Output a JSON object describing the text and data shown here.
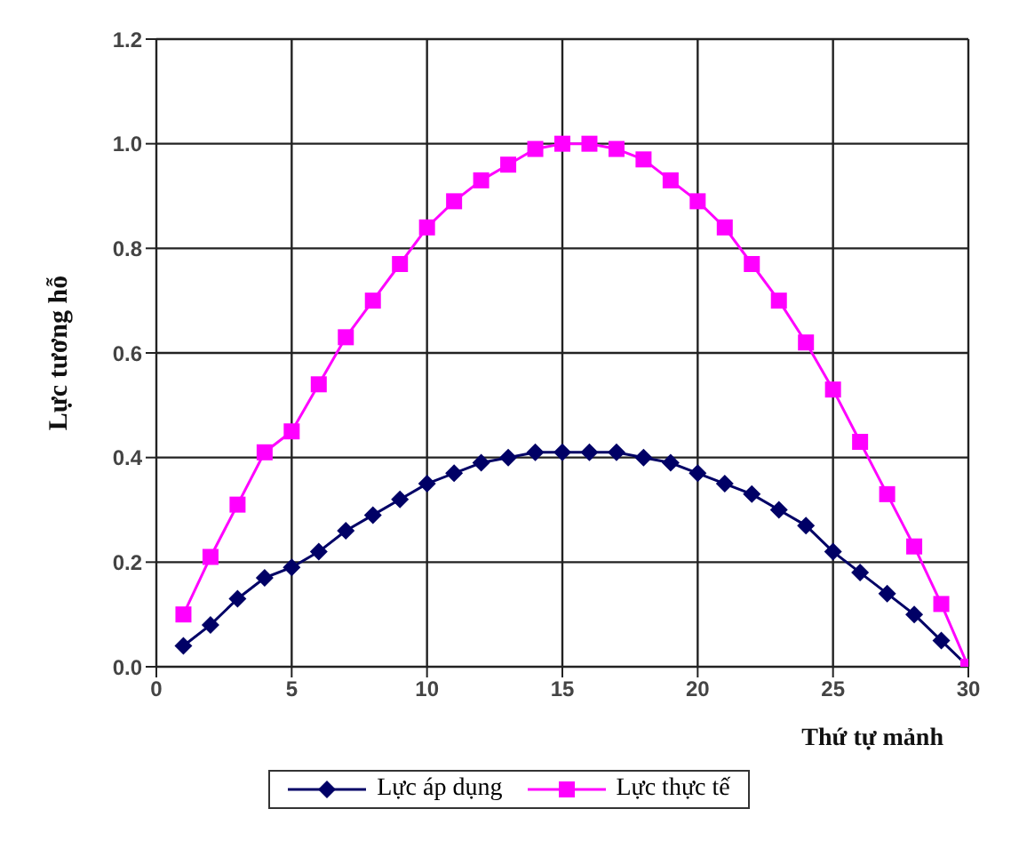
{
  "chart_data": {
    "type": "line",
    "xlabel": "Thứ tự mảnh",
    "ylabel": "Lực tương hỗ",
    "x": [
      1,
      2,
      3,
      4,
      5,
      6,
      7,
      8,
      9,
      10,
      11,
      12,
      13,
      14,
      15,
      16,
      17,
      18,
      19,
      20,
      21,
      22,
      23,
      24,
      25,
      26,
      27,
      28,
      29,
      30
    ],
    "series": [
      {
        "name": "Lực áp dụng",
        "color": "#000066",
        "marker": "diamond",
        "values": [
          0.04,
          0.08,
          0.13,
          0.17,
          0.19,
          0.22,
          0.26,
          0.29,
          0.32,
          0.35,
          0.37,
          0.39,
          0.4,
          0.41,
          0.41,
          0.41,
          0.41,
          0.4,
          0.39,
          0.37,
          0.35,
          0.33,
          0.3,
          0.27,
          0.22,
          0.18,
          0.14,
          0.1,
          0.05,
          0.0
        ]
      },
      {
        "name": "Lực thực tế",
        "color": "#ff00ff",
        "marker": "square",
        "values": [
          0.1,
          0.21,
          0.31,
          0.41,
          0.45,
          0.54,
          0.63,
          0.7,
          0.77,
          0.84,
          0.89,
          0.93,
          0.96,
          0.99,
          1.0,
          1.0,
          0.99,
          0.97,
          0.93,
          0.89,
          0.84,
          0.77,
          0.7,
          0.62,
          0.53,
          0.43,
          0.33,
          0.23,
          0.12,
          0.0
        ]
      }
    ],
    "xlim": [
      0,
      30
    ],
    "xticks": [
      0,
      5,
      10,
      15,
      20,
      25,
      30
    ],
    "ylim": [
      0,
      1.2
    ],
    "yticks": [
      {
        "value": 0,
        "label": "0.0"
      },
      {
        "value": 0.2,
        "label": "0.2"
      },
      {
        "value": 0.4,
        "label": "0.4"
      },
      {
        "value": 0.6,
        "label": "0.6"
      },
      {
        "value": 0.8,
        "label": "0.8"
      },
      {
        "value": 1,
        "label": "1.0"
      },
      {
        "value": 1.2,
        "label": "1.2"
      }
    ],
    "grid": true,
    "legend": "bottom"
  }
}
